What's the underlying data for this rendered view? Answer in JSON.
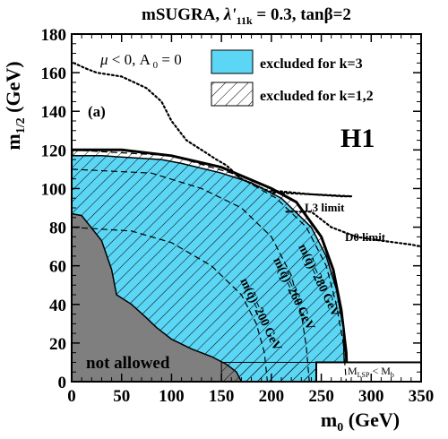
{
  "chart_data": {
    "type": "area",
    "title": "mSUGRA, λ'11k = 0.3, tanβ=2",
    "title_parts": {
      "a": "mSUGRA, ",
      "lambda": "λ'",
      "sub": "11k",
      "b": " = 0.3, tanβ=2"
    },
    "xlabel": "m0 (GeV)",
    "xlabel_parts": {
      "main": "m",
      "sub": "0",
      "rest": " (GeV)"
    },
    "ylabel": "m1/2 (GeV)",
    "ylabel_parts": {
      "main": "m",
      "sub": "1/2",
      "rest": " (GeV)"
    },
    "xlim": [
      0,
      350
    ],
    "ylim": [
      0,
      180
    ],
    "xticks": [
      0,
      50,
      100,
      150,
      200,
      250,
      300,
      350
    ],
    "yticks": [
      0,
      20,
      40,
      60,
      80,
      100,
      120,
      140,
      160,
      180
    ],
    "panel_label": "(a)",
    "experiment_label": "H1",
    "condition_label": "μ < 0, A 0 = 0",
    "legend_position": "top-right",
    "legend": [
      {
        "label": "excluded for k=3",
        "style": "filled",
        "color": "#5bd6f4"
      },
      {
        "label": "excluded for k=1,2",
        "style": "hatched"
      }
    ],
    "regions": {
      "excluded_k3": {
        "color": "#5bd6f4",
        "boundary": [
          [
            0,
            117
          ],
          [
            30,
            117
          ],
          [
            60,
            116
          ],
          [
            90,
            115
          ],
          [
            110,
            113
          ],
          [
            150,
            108
          ],
          [
            180,
            103
          ],
          [
            210,
            95
          ],
          [
            240,
            80
          ],
          [
            255,
            65
          ],
          [
            265,
            48
          ],
          [
            272,
            28
          ],
          [
            273,
            10
          ],
          [
            273,
            0
          ]
        ]
      },
      "excluded_k12": {
        "boundary": [
          [
            0,
            120
          ],
          [
            50,
            120
          ],
          [
            100,
            117
          ],
          [
            150,
            111
          ],
          [
            200,
            100
          ],
          [
            225,
            93
          ],
          [
            250,
            75
          ],
          [
            262,
            58
          ],
          [
            270,
            37
          ],
          [
            275,
            15
          ],
          [
            276,
            0
          ]
        ]
      },
      "not_allowed": {
        "label": "not allowed",
        "color": "#7f7f7f",
        "boundary": [
          [
            0,
            87
          ],
          [
            10,
            86
          ],
          [
            30,
            73
          ],
          [
            40,
            58
          ],
          [
            45,
            45
          ],
          [
            60,
            40
          ],
          [
            75,
            33
          ],
          [
            85,
            28
          ],
          [
            100,
            22
          ],
          [
            120,
            17
          ],
          [
            140,
            13
          ],
          [
            155,
            9
          ],
          [
            165,
            5
          ],
          [
            170,
            0
          ]
        ]
      },
      "mlsp_lt_mb": {
        "label": "M LSP < M b",
        "x_range": [
          245,
          350
        ],
        "y_range": [
          0,
          10
        ],
        "hatched_x_range": [
          150,
          245
        ]
      }
    },
    "external_limits": [
      {
        "label": "μ < 0, A 0 = 0",
        "points": [
          [
            2,
            165
          ],
          [
            15,
            162
          ],
          [
            25,
            160
          ],
          [
            50,
            158
          ],
          [
            75,
            152
          ],
          [
            90,
            145
          ],
          [
            100,
            135
          ],
          [
            115,
            125
          ],
          [
            130,
            120
          ],
          [
            145,
            115
          ],
          [
            155,
            112
          ],
          [
            170,
            105
          ],
          [
            200,
            98
          ],
          [
            240,
            97
          ],
          [
            270,
            96
          ],
          [
            280,
            96
          ]
        ]
      },
      {
        "label": "L3 limit",
        "points": [
          [
            200,
            99
          ],
          [
            240,
            97
          ],
          [
            280,
            96
          ]
        ]
      },
      {
        "label": "D0 limit",
        "points": [
          [
            215,
            88
          ],
          [
            240,
            88
          ],
          [
            260,
            80
          ],
          [
            285,
            75
          ],
          [
            310,
            73
          ],
          [
            340,
            71
          ],
          [
            350,
            70
          ]
        ]
      }
    ],
    "squark_contours": [
      {
        "label": "m(q̃)=200 GeV",
        "points": [
          [
            0,
            80
          ],
          [
            60,
            78
          ],
          [
            100,
            72
          ],
          [
            140,
            60
          ],
          [
            170,
            45
          ],
          [
            185,
            30
          ],
          [
            193,
            15
          ],
          [
            196,
            0
          ]
        ]
      },
      {
        "label": "m(q̃)=260 GeV",
        "points": [
          [
            0,
            110
          ],
          [
            80,
            108
          ],
          [
            130,
            100
          ],
          [
            170,
            90
          ],
          [
            200,
            75
          ],
          [
            220,
            55
          ],
          [
            230,
            35
          ],
          [
            235,
            18
          ],
          [
            238,
            0
          ]
        ]
      },
      {
        "label": "m(q̃)=280 GeV",
        "points": [
          [
            0,
            120
          ],
          [
            100,
            117
          ],
          [
            160,
            108
          ],
          [
            205,
            95
          ],
          [
            235,
            80
          ],
          [
            255,
            60
          ],
          [
            265,
            40
          ],
          [
            272,
            20
          ],
          [
            275,
            0
          ]
        ]
      }
    ],
    "annotations": [
      "L3 limit",
      "D0 limit",
      "m(q̃)=280 GeV",
      "m(q̃)=260 GeV",
      "m(q̃)=200 GeV",
      "not allowed",
      "M LSP < M b"
    ]
  }
}
